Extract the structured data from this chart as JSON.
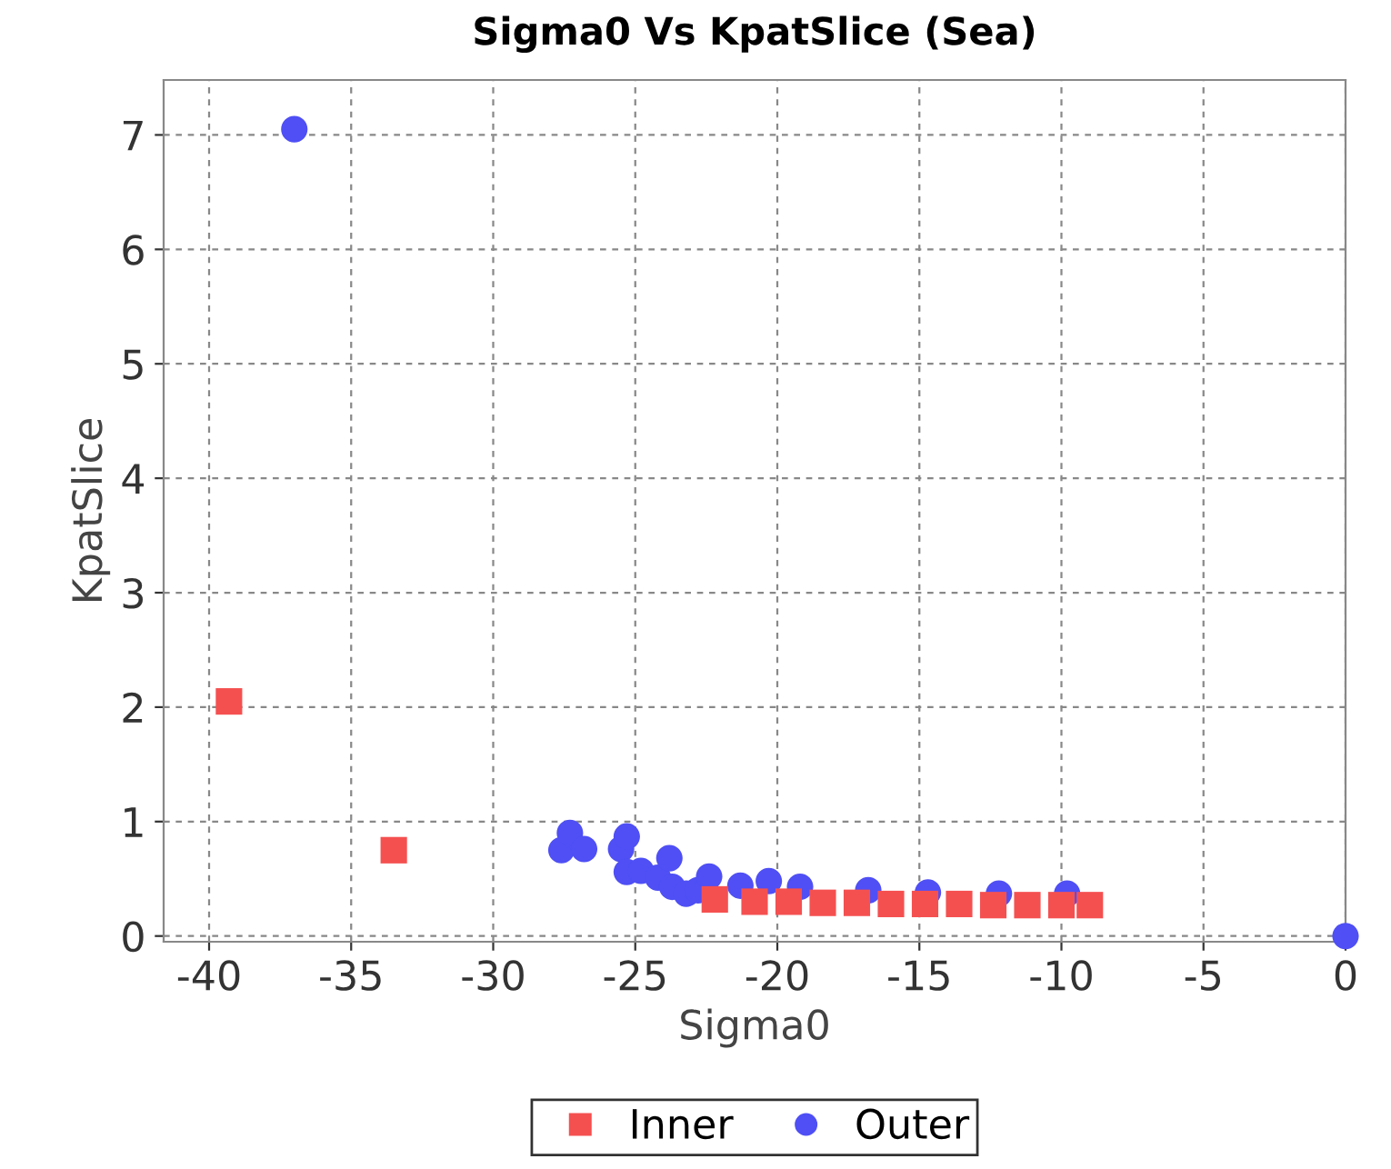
{
  "chart_data": {
    "type": "scatter",
    "title": "Sigma0 Vs KpatSlice (Sea)",
    "xlabel": "Sigma0",
    "ylabel": "KpatSlice",
    "xlim": [
      -41.6,
      0
    ],
    "ylim": [
      -0.05,
      7.48
    ],
    "xticks": [
      -40,
      -35,
      -30,
      -25,
      -20,
      -15,
      -10,
      -5,
      0
    ],
    "yticks": [
      0,
      1,
      2,
      3,
      4,
      5,
      6,
      7
    ],
    "grid": true,
    "legend": "bottom",
    "series": [
      {
        "name": "Inner",
        "color": "#f55050",
        "marker": "square",
        "x": [
          -39.3,
          -33.5,
          -22.2,
          -20.8,
          -19.6,
          -18.4,
          -17.2,
          -16,
          -14.8,
          -13.6,
          -12.4,
          -11.2,
          -10,
          -9
        ],
        "values": [
          2.05,
          0.75,
          0.32,
          0.3,
          0.3,
          0.29,
          0.29,
          0.28,
          0.28,
          0.28,
          0.27,
          0.27,
          0.27,
          0.27
        ]
      },
      {
        "name": "Outer",
        "color": "#4f4ff5",
        "marker": "circle",
        "x": [
          -37,
          -27.6,
          -27.3,
          -26.8,
          -25.5,
          -25.3,
          -25.3,
          -24.8,
          -24.2,
          -23.8,
          -23.7,
          -23.2,
          -22.8,
          -22.4,
          -21.3,
          -20.3,
          -19.2,
          -16.8,
          -14.7,
          -12.2,
          -9.8,
          0
        ],
        "values": [
          7.05,
          0.75,
          0.9,
          0.76,
          0.76,
          0.87,
          0.56,
          0.57,
          0.51,
          0.68,
          0.43,
          0.37,
          0.4,
          0.52,
          0.44,
          0.48,
          0.43,
          0.4,
          0.38,
          0.37,
          0.37,
          0.0
        ]
      }
    ]
  }
}
